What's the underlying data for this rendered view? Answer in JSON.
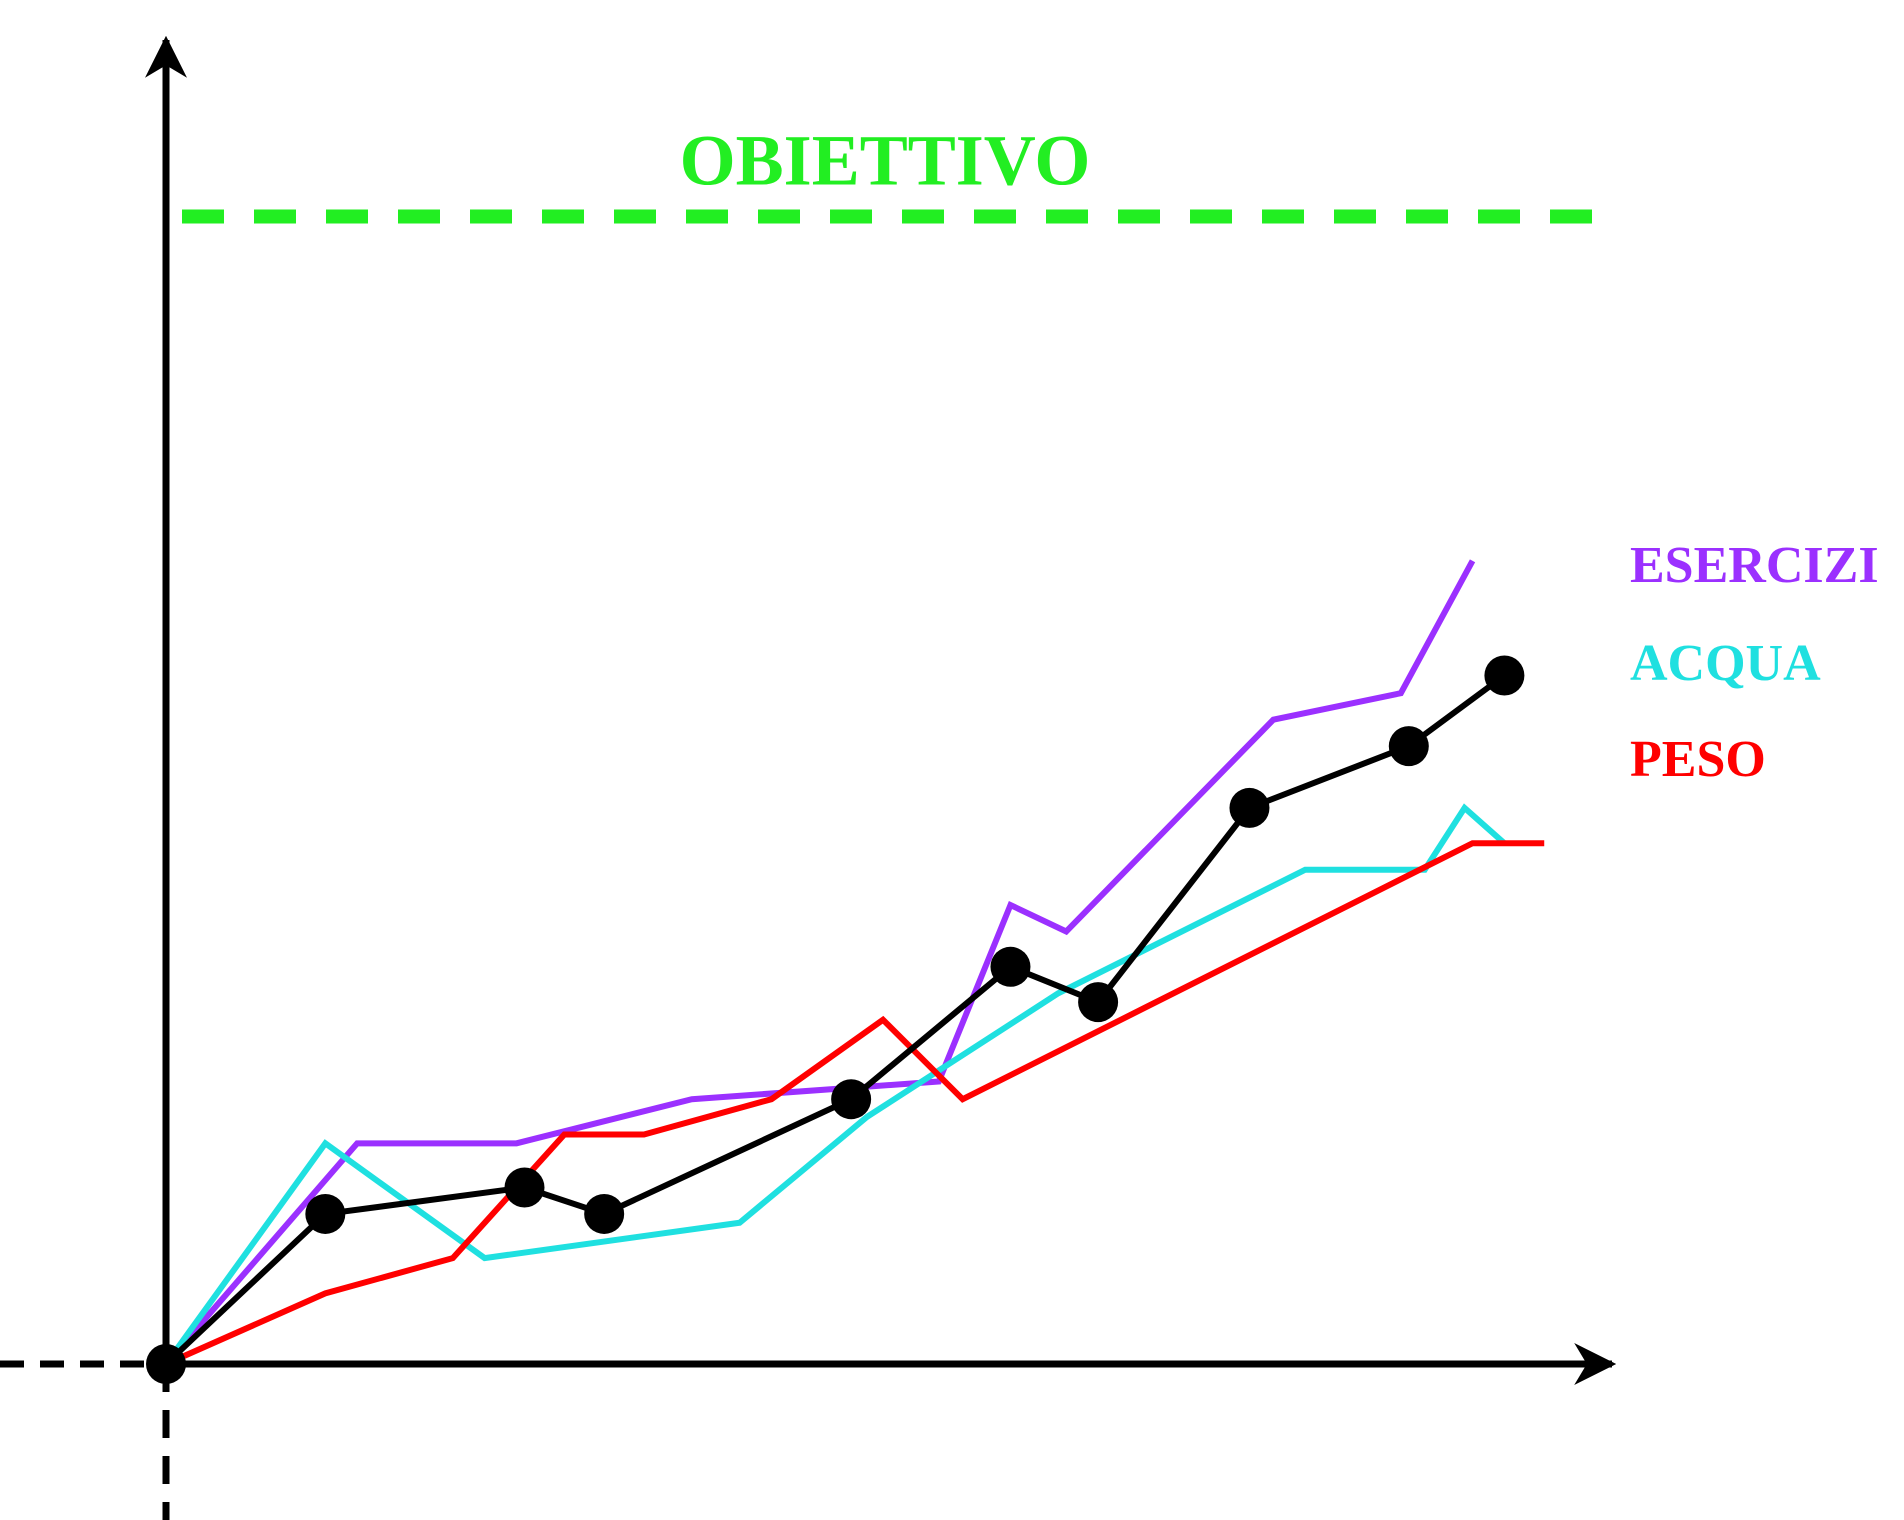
{
  "chart_data": {
    "type": "line",
    "title": "",
    "xlabel": "",
    "ylabel": "",
    "xlim": [
      0,
      18
    ],
    "ylim": [
      0,
      15
    ],
    "grid": false,
    "legend_placement": "right",
    "target": {
      "label": "OBIETTIVO",
      "value": 13.0,
      "color": "#22ee22"
    },
    "series": [
      {
        "name": "ESERCIZI",
        "color": "#9b30ff",
        "x": [
          0,
          2.4,
          4.4,
          6.6,
          9.7,
          10.6,
          11.3,
          13.9,
          15.5,
          16.4
        ],
        "y": [
          0,
          2.5,
          2.5,
          3.0,
          3.2,
          5.2,
          4.9,
          7.3,
          7.6,
          9.1
        ]
      },
      {
        "name": "ACQUA",
        "color": "#1fe0e0",
        "x": [
          0,
          2.0,
          4.0,
          7.2,
          8.8,
          11.2,
          14.3,
          15.8,
          16.3,
          16.8
        ],
        "y": [
          0,
          2.5,
          1.2,
          1.6,
          2.8,
          4.2,
          5.6,
          5.6,
          6.3,
          5.9
        ]
      },
      {
        "name": "PESO",
        "color": "#ff0000",
        "x": [
          0,
          2.0,
          3.6,
          5.0,
          6.0,
          7.6,
          9.0,
          10.0,
          16.4,
          17.3
        ],
        "y": [
          0,
          0.8,
          1.2,
          2.6,
          2.6,
          3.0,
          3.9,
          3.0,
          5.9,
          5.9
        ]
      },
      {
        "name": "",
        "color": "#000000",
        "markers": true,
        "x": [
          0,
          2.0,
          4.5,
          5.5,
          8.6,
          10.6,
          11.7,
          13.6,
          15.6,
          16.8
        ],
        "y": [
          0,
          1.7,
          2.0,
          1.7,
          3.0,
          4.5,
          4.1,
          6.3,
          7.0,
          7.8
        ]
      }
    ]
  }
}
